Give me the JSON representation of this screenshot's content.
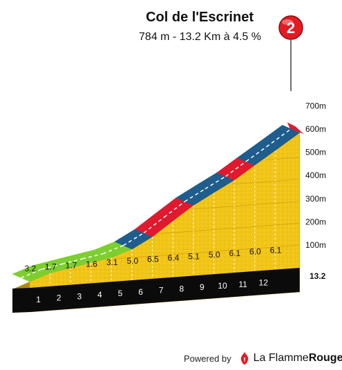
{
  "title": "Col de l'Escrinet",
  "subtitle": "784 m - 13.2 Km à 4.5 %",
  "climb_number": "2",
  "footer": {
    "powered_by": "Powered by",
    "brand_regular": "La Flamme",
    "brand_bold": "Rouge"
  },
  "colors": {
    "green": "#7ccf2f",
    "blue": "#1e5d8c",
    "red": "#e0192e",
    "terrain": "#f2c618",
    "base": "#0b0b0b",
    "marker": "#e41b23"
  },
  "chart_data": {
    "type": "area",
    "title": "Col de l'Escrinet",
    "summary": {
      "summit_altitude_m": 784,
      "length_km": 13.2,
      "avg_gradient_pct": 4.5
    },
    "km_markers": [
      "1",
      "2",
      "3",
      "4",
      "5",
      "6",
      "7",
      "8",
      "9",
      "10",
      "11",
      "12",
      "13.2"
    ],
    "segments": [
      {
        "km": [
          0,
          1
        ],
        "gradient": 3.2,
        "label": "3.2",
        "color": "green"
      },
      {
        "km": [
          1,
          2
        ],
        "gradient": 1.7,
        "label": "1.7",
        "color": "green"
      },
      {
        "km": [
          2,
          3
        ],
        "gradient": 1.7,
        "label": "1.7",
        "color": "green"
      },
      {
        "km": [
          3,
          4
        ],
        "gradient": 1.6,
        "label": "1.6",
        "color": "green"
      },
      {
        "km": [
          4,
          5
        ],
        "gradient": 3.1,
        "label": "3.1",
        "color": "green"
      },
      {
        "km": [
          5,
          6
        ],
        "gradient": 5.0,
        "label": "5.0",
        "color": "blue"
      },
      {
        "km": [
          6,
          7
        ],
        "gradient": 6.5,
        "label": "6.5",
        "color": "red"
      },
      {
        "km": [
          7,
          8
        ],
        "gradient": 6.4,
        "label": "6.4",
        "color": "red"
      },
      {
        "km": [
          8,
          9
        ],
        "gradient": 5.1,
        "label": "5.1",
        "color": "blue"
      },
      {
        "km": [
          9,
          10
        ],
        "gradient": 5.0,
        "label": "5.0",
        "color": "blue"
      },
      {
        "km": [
          10,
          11
        ],
        "gradient": 6.1,
        "label": "6.1",
        "color": "red"
      },
      {
        "km": [
          11,
          12
        ],
        "gradient": 6.0,
        "label": "6.0",
        "color": "blue"
      },
      {
        "km": [
          12,
          13.2
        ],
        "gradient": 6.1,
        "label": "6.1",
        "color": "blue"
      }
    ],
    "y_ticks": [
      "100m",
      "200m",
      "300m",
      "400m",
      "500m",
      "600m",
      "700m"
    ],
    "ylim": [
      0,
      784
    ],
    "xlim": [
      0,
      13.2
    ]
  }
}
